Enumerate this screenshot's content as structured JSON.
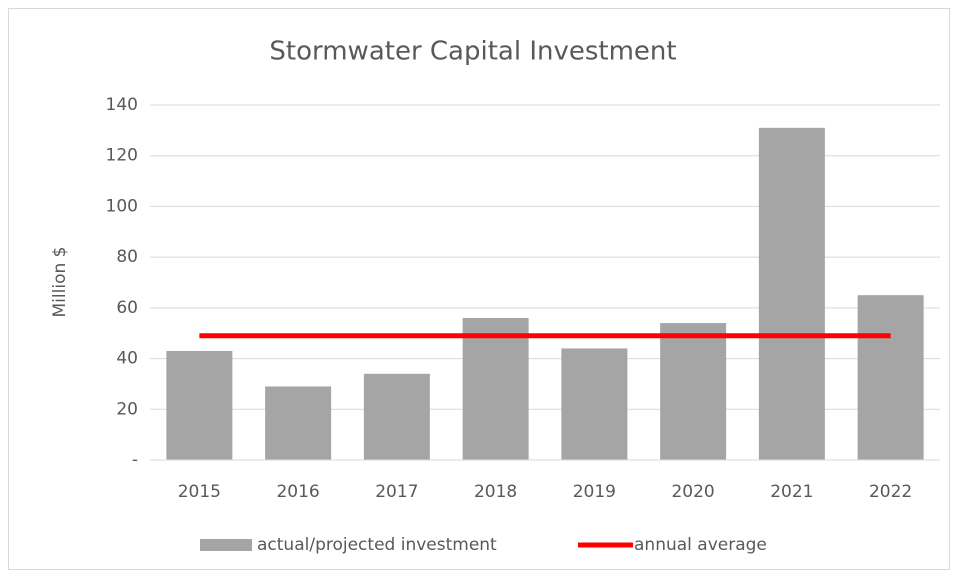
{
  "chart_data": {
    "type": "bar",
    "title": "Stormwater Capital Investment",
    "y_label": "Million $",
    "categories": [
      "2015",
      "2016",
      "2017",
      "2018",
      "2019",
      "2020",
      "2021",
      "2022"
    ],
    "series": [
      {
        "name": "actual/projected investment",
        "type": "bar",
        "color": "#a5a5a5",
        "values": [
          43,
          29,
          34,
          56,
          44,
          54,
          131,
          65
        ]
      },
      {
        "name": "annual average",
        "type": "line",
        "color": "#ff0000",
        "values": [
          49,
          49,
          49,
          49,
          49,
          49,
          49,
          49
        ]
      }
    ],
    "ylim": [
      0,
      140
    ],
    "yticks": [
      {
        "value": 0,
        "label": "-"
      },
      20,
      40,
      60,
      80,
      100,
      120,
      140
    ],
    "grid": true,
    "legend": "bottom"
  }
}
